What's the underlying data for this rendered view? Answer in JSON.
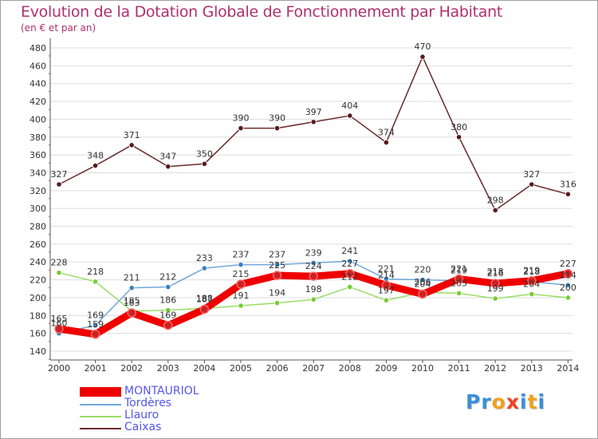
{
  "title": "Evolution de la Dotation Globale de Fonctionnement par Habitant",
  "subtitle": "(en € et par an)",
  "logo": {
    "letters": [
      "P",
      "r",
      "o",
      "x",
      "i",
      "t",
      "i"
    ],
    "colors": [
      "#3a8fd8",
      "#3a8fd8",
      "#f0a020",
      "#ee4422",
      "#3a8fd8",
      "#f0a020",
      "#3a8fd8"
    ]
  },
  "chart_data": {
    "type": "line",
    "title": "Evolution de la Dotation Globale de Fonctionnement par Habitant",
    "subtitle": "(en € et par an)",
    "xlabel": "",
    "ylabel": "",
    "ylim": [
      140,
      480
    ],
    "ytick_step": 20,
    "grid": "horizontal",
    "legend_position": "bottom-left",
    "x": [
      "2000",
      "2001",
      "2002",
      "2003",
      "2004",
      "2005",
      "2006",
      "2007",
      "2008",
      "2009",
      "2010",
      "2011",
      "2012",
      "2013",
      "2014"
    ],
    "series": [
      {
        "name": "MONTAURIOL",
        "color": "#ee0000",
        "marker_color": "#cc2222",
        "thick": true,
        "values": [
          165,
          159,
          183,
          169,
          187,
          215,
          225,
          224,
          227,
          214,
          204,
          221,
          216,
          219,
          227
        ],
        "labels": [
          "165",
          "159",
          "183",
          "169",
          "187",
          "215",
          "225",
          "224",
          "227",
          "214",
          "204",
          "221",
          "216",
          "219",
          "227"
        ]
      },
      {
        "name": "Tordères",
        "color": "#70a8d8",
        "marker_color": "#3a80c0",
        "thick": false,
        "values": [
          160,
          169,
          211,
          212,
          233,
          237,
          237,
          239,
          241,
          221,
          220,
          219,
          218,
          218,
          214
        ],
        "labels": [
          "160",
          "169",
          "211",
          "212",
          "233",
          "237",
          "237",
          "239",
          "241",
          "221",
          "220",
          "219",
          "218",
          "218",
          "214"
        ]
      },
      {
        "name": "Llauro",
        "color": "#99dd66",
        "marker_color": "#77cc33",
        "thick": false,
        "values": [
          228,
          218,
          185,
          186,
          188,
          191,
          194,
          198,
          212,
          197,
          206,
          205,
          199,
          204,
          200
        ],
        "labels": [
          "228",
          "218",
          "185",
          "186",
          "188",
          "191",
          "194",
          "198",
          "212",
          "197",
          "206",
          "205",
          "199",
          "204",
          "200"
        ]
      },
      {
        "name": "Caixas",
        "color": "#6b2a2a",
        "marker_color": "#5a1a1a",
        "thick": false,
        "values": [
          327,
          348,
          371,
          347,
          350,
          390,
          390,
          397,
          404,
          374,
          470,
          380,
          298,
          327,
          316
        ],
        "labels": [
          "327",
          "348",
          "371",
          "347",
          "350",
          "390",
          "390",
          "397",
          "404",
          "374",
          "470",
          "380",
          "298",
          "327",
          "316"
        ]
      }
    ]
  }
}
